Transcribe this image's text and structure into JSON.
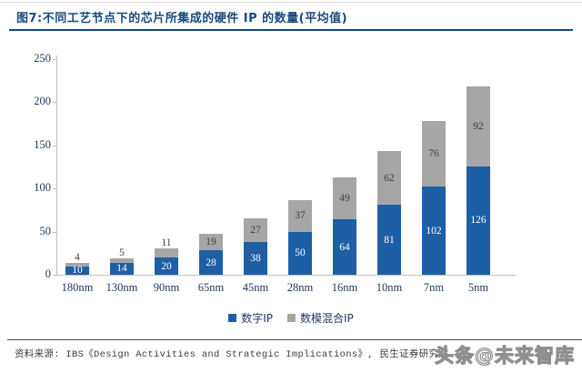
{
  "title": "图7:不同工艺节点下的芯片所集成的硬件 IP 的数量(平均值)",
  "source": "资料来源: IBS《Design Activities and Strategic Implications》, 民生证券研究院",
  "watermark": "头条@未来智库",
  "colors": {
    "title_navy": "#17497f",
    "axis_text_navy": "#1f3864",
    "bar_blue": "#1d5fa5",
    "bar_gray": "#a6a6a6",
    "axis_line_gray": "#c0c0c0",
    "label_on_blue": "#ffffff",
    "label_on_gray": "#404040"
  },
  "chart_data": {
    "type": "bar",
    "stacked": true,
    "title": "不同工艺节点下的芯片所集成的硬件 IP 的数量(平均值)",
    "categories": [
      "180nm",
      "130nm",
      "90nm",
      "65nm",
      "45nm",
      "28nm",
      "16nm",
      "10nm",
      "7nm",
      "5nm"
    ],
    "series": [
      {
        "name": "数字IP",
        "color": "#1d5fa5",
        "values": [
          10,
          14,
          20,
          28,
          38,
          50,
          64,
          81,
          102,
          126
        ]
      },
      {
        "name": "数模混合IP",
        "color": "#a6a6a6",
        "values": [
          4,
          5,
          11,
          19,
          27,
          37,
          49,
          62,
          76,
          92
        ]
      }
    ],
    "yticks": [
      0,
      50,
      100,
      150,
      200,
      250
    ],
    "ylim": [
      0,
      250
    ],
    "xlabel": "",
    "ylabel": "",
    "grid": false,
    "legend_position": "bottom",
    "data_labels": true
  }
}
